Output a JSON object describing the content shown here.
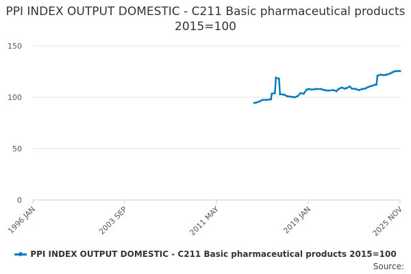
{
  "chart_data": {
    "type": "line",
    "title": "PPI INDEX OUTPUT DOMESTIC - C211 Basic pharmaceutical products 2015=100",
    "ylim": [
      0,
      150
    ],
    "yticks": [
      0,
      50,
      100,
      150
    ],
    "xlim": [
      "1996-01",
      "2025-11"
    ],
    "xtick_labels": [
      "1996 JAN",
      "2003 SEP",
      "2011 MAY",
      "2019 JAN",
      "2025 NOV"
    ],
    "grid": "horizontal",
    "legend_position": "bottom",
    "series": [
      {
        "name": "PPI INDEX OUTPUT DOMESTIC - C211 Basic pharmaceutical products 2015=100",
        "color": "#0b7dbf",
        "points": [
          [
            "2014-01",
            94.5
          ],
          [
            "2014-03",
            95.0
          ],
          [
            "2014-06",
            96.0
          ],
          [
            "2014-09",
            97.5
          ],
          [
            "2015-01",
            97.5
          ],
          [
            "2015-05",
            98.0
          ],
          [
            "2015-06",
            103.5
          ],
          [
            "2015-09",
            104.0
          ],
          [
            "2015-10",
            119.0
          ],
          [
            "2016-01",
            118.0
          ],
          [
            "2016-02",
            103.0
          ],
          [
            "2016-06",
            102.5
          ],
          [
            "2016-09",
            101.0
          ],
          [
            "2017-01",
            100.5
          ],
          [
            "2017-04",
            100.0
          ],
          [
            "2017-07",
            101.0
          ],
          [
            "2017-10",
            104.0
          ],
          [
            "2018-01",
            103.5
          ],
          [
            "2018-04",
            107.5
          ],
          [
            "2018-06",
            108.0
          ],
          [
            "2018-09",
            107.5
          ],
          [
            "2019-01",
            108.0
          ],
          [
            "2019-06",
            108.0
          ],
          [
            "2019-09",
            107.0
          ],
          [
            "2020-01",
            106.5
          ],
          [
            "2020-06",
            107.0
          ],
          [
            "2020-09",
            106.0
          ],
          [
            "2020-11",
            108.0
          ],
          [
            "2021-02",
            109.5
          ],
          [
            "2021-05",
            108.5
          ],
          [
            "2021-07",
            109.0
          ],
          [
            "2021-10",
            110.5
          ],
          [
            "2021-12",
            108.5
          ],
          [
            "2022-04",
            108.0
          ],
          [
            "2022-07",
            107.0
          ],
          [
            "2022-10",
            108.0
          ],
          [
            "2023-01",
            108.5
          ],
          [
            "2023-04",
            110.0
          ],
          [
            "2023-07",
            111.0
          ],
          [
            "2023-10",
            112.0
          ],
          [
            "2023-12",
            112.5
          ],
          [
            "2024-01",
            121.0
          ],
          [
            "2024-04",
            122.0
          ],
          [
            "2024-07",
            121.5
          ],
          [
            "2024-10",
            122.0
          ],
          [
            "2025-01",
            123.0
          ],
          [
            "2025-03",
            124.0
          ],
          [
            "2025-05",
            125.0
          ],
          [
            "2025-07",
            125.5
          ],
          [
            "2025-09",
            125.5
          ],
          [
            "2025-11",
            125.5
          ]
        ]
      }
    ]
  },
  "source_label": "Source:"
}
